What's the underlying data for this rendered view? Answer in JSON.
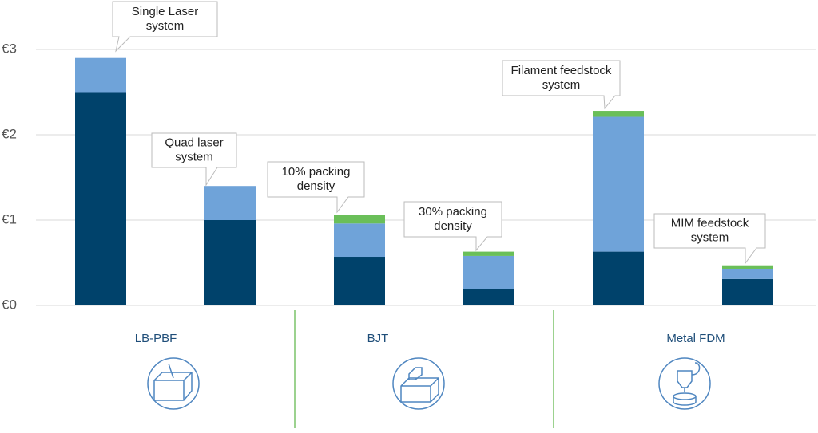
{
  "chart_data": {
    "type": "bar",
    "stacked": true,
    "categories": [
      null,
      null,
      null,
      null,
      null,
      null
    ],
    "series": [
      {
        "color": "#00426b",
        "values": [
          2.5,
          1.0,
          0.57,
          0.19,
          0.63,
          0.31
        ]
      },
      {
        "color": "#6fa3d9",
        "values": [
          0.4,
          0.4,
          0.39,
          0.39,
          1.58,
          0.12
        ]
      },
      {
        "color": "#6abf59",
        "values": [
          0,
          0,
          0.1,
          0.05,
          0.07,
          0.04
        ]
      }
    ],
    "annotations": [
      [
        "Single Laser",
        "system"
      ],
      [
        "Quad laser",
        "system"
      ],
      [
        "10% packing",
        "density"
      ],
      [
        "30% packing",
        "density"
      ],
      [
        "Filament feedstock",
        "system"
      ],
      [
        "MIM feedstock",
        "system"
      ]
    ],
    "groups": [
      "LB-PBF",
      "BJT",
      "Metal FDM"
    ],
    "ylim": [
      0,
      3
    ],
    "yticks": [
      {
        "value": 0,
        "label": "€0"
      },
      {
        "value": 1,
        "label": "€1"
      },
      {
        "value": 2,
        "label": "€2"
      },
      {
        "value": 3,
        "label": "€3"
      }
    ],
    "grid": true
  }
}
